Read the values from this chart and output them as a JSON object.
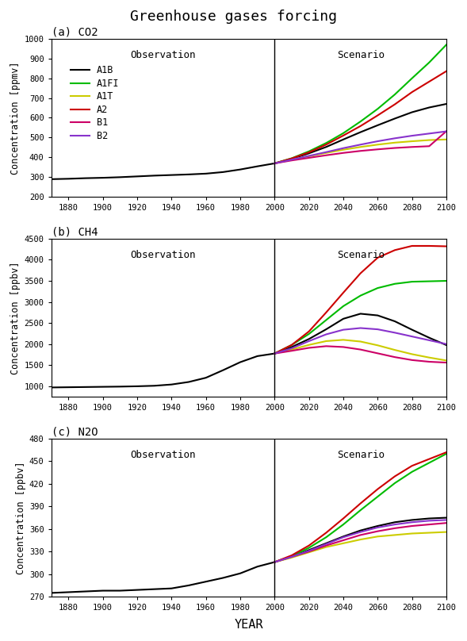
{
  "title": "Greenhouse gases forcing",
  "panels": [
    {
      "label": "(a) CO2",
      "ylabel": "Concentration [ppmv]",
      "ylim": [
        200,
        1000
      ],
      "yticks": [
        200,
        300,
        400,
        500,
        600,
        700,
        800,
        900,
        1000
      ]
    },
    {
      "label": "(b) CH4",
      "ylabel": "Concentration [ppbv]",
      "ylim": [
        750,
        4500
      ],
      "yticks": [
        1000,
        1500,
        2000,
        2500,
        3000,
        3500,
        4000,
        4500
      ]
    },
    {
      "label": "(c) N2O",
      "ylabel": "Concentration [ppbv]",
      "ylim": [
        270,
        480
      ],
      "yticks": [
        270,
        300,
        330,
        360,
        390,
        420,
        450,
        480
      ]
    }
  ],
  "scenarios": [
    "A1B",
    "A1FI",
    "A1T",
    "A2",
    "B1",
    "B2"
  ],
  "colors": {
    "A1B": "#000000",
    "A1FI": "#00bb00",
    "A1T": "#cccc00",
    "A2": "#cc0000",
    "B1": "#cc0066",
    "B2": "#8833cc"
  },
  "obs_years": [
    1870,
    1880,
    1890,
    1900,
    1910,
    1920,
    1930,
    1940,
    1950,
    1960,
    1970,
    1980,
    1990,
    2000
  ],
  "co2_obs": [
    289,
    291,
    294,
    296,
    299,
    303,
    307,
    310,
    313,
    317,
    325,
    338,
    354,
    369
  ],
  "ch4_obs": [
    970,
    975,
    980,
    985,
    990,
    998,
    1010,
    1040,
    1100,
    1200,
    1380,
    1570,
    1714,
    1775
  ],
  "n2o_obs": [
    275,
    276,
    277,
    278,
    278,
    279,
    280,
    281,
    285,
    290,
    295,
    301,
    310,
    316
  ],
  "scen_years": [
    2000,
    2010,
    2020,
    2030,
    2040,
    2050,
    2060,
    2070,
    2080,
    2090,
    2100
  ],
  "co2_scen": {
    "A1B": [
      369,
      392,
      420,
      452,
      490,
      527,
      562,
      596,
      628,
      652,
      670
    ],
    "A1FI": [
      369,
      395,
      430,
      472,
      522,
      581,
      645,
      718,
      800,
      880,
      970
    ],
    "A1T": [
      369,
      388,
      405,
      422,
      438,
      452,
      464,
      474,
      481,
      487,
      490
    ],
    "A2": [
      369,
      394,
      425,
      464,
      510,
      558,
      612,
      668,
      730,
      783,
      836
    ],
    "B1": [
      369,
      384,
      397,
      410,
      422,
      432,
      440,
      447,
      452,
      456,
      532
    ],
    "B2": [
      369,
      388,
      407,
      426,
      446,
      464,
      481,
      496,
      509,
      520,
      531
    ]
  },
  "ch4_scen": {
    "A1B": [
      1775,
      1930,
      2120,
      2350,
      2600,
      2720,
      2680,
      2540,
      2340,
      2150,
      1975
    ],
    "A1FI": [
      1775,
      1980,
      2240,
      2570,
      2900,
      3150,
      3330,
      3430,
      3480,
      3490,
      3500
    ],
    "A1T": [
      1775,
      1870,
      1980,
      2070,
      2100,
      2060,
      1970,
      1860,
      1760,
      1680,
      1610
    ],
    "A2": [
      1775,
      1980,
      2300,
      2750,
      3220,
      3680,
      4050,
      4230,
      4330,
      4330,
      4320
    ],
    "B1": [
      1775,
      1840,
      1910,
      1950,
      1930,
      1870,
      1780,
      1690,
      1620,
      1580,
      1560
    ],
    "B2": [
      1775,
      1900,
      2070,
      2230,
      2340,
      2380,
      2350,
      2270,
      2180,
      2090,
      2000
    ]
  },
  "n2o_scen": {
    "A1B": [
      316,
      323,
      332,
      341,
      350,
      358,
      364,
      369,
      372,
      374,
      375
    ],
    "A1FI": [
      316,
      324,
      335,
      349,
      366,
      385,
      403,
      421,
      436,
      448,
      460
    ],
    "A1T": [
      316,
      322,
      329,
      336,
      341,
      346,
      350,
      352,
      354,
      355,
      356
    ],
    "A2": [
      316,
      325,
      338,
      355,
      374,
      394,
      413,
      430,
      444,
      453,
      462
    ],
    "B1": [
      316,
      323,
      330,
      338,
      345,
      352,
      357,
      361,
      364,
      366,
      368
    ],
    "B2": [
      316,
      323,
      331,
      340,
      349,
      356,
      362,
      366,
      369,
      371,
      372
    ]
  },
  "xlabel": "YEAR",
  "xlim": [
    1870,
    2100
  ],
  "xticks": [
    1880,
    1900,
    1920,
    1940,
    1960,
    1980,
    2000,
    2020,
    2040,
    2060,
    2080,
    2100
  ],
  "vline_x": 2000,
  "obs_label": "Observation",
  "scen_label": "Scenario",
  "bg_color": "#ffffff"
}
